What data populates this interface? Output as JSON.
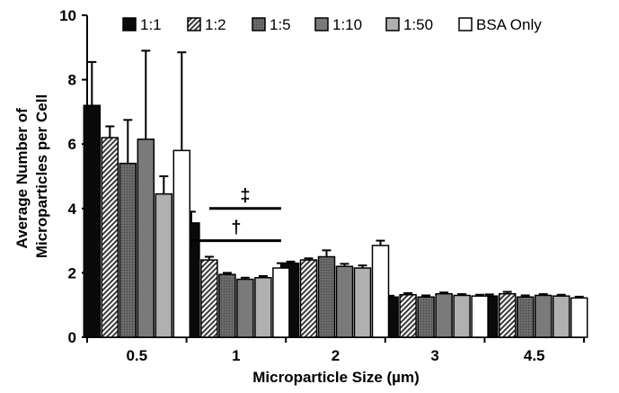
{
  "chart_data": {
    "type": "bar",
    "title": "",
    "xlabel": "Microparticle Size (µm)",
    "ylabel": "Average Number of Microparticles per Cell",
    "ylabel_lines": [
      "Average Number of",
      "Microparticles per Cell"
    ],
    "ylim": [
      0,
      10
    ],
    "yticks": [
      0,
      2,
      4,
      6,
      8,
      10
    ],
    "categories": [
      "0.5",
      "1",
      "2",
      "3",
      "4.5"
    ],
    "grid": false,
    "legend_position": "top",
    "series": [
      {
        "name": "1:1",
        "values": [
          7.2,
          3.55,
          2.3,
          1.25,
          1.28
        ],
        "errors": [
          1.35,
          0.35,
          0.05,
          0.04,
          0.05
        ]
      },
      {
        "name": "1:2",
        "values": [
          6.2,
          2.4,
          2.4,
          1.32,
          1.35
        ],
        "errors": [
          0.35,
          0.1,
          0.05,
          0.05,
          0.06
        ]
      },
      {
        "name": "1:5",
        "values": [
          5.4,
          1.95,
          2.5,
          1.25,
          1.25
        ],
        "errors": [
          1.35,
          0.05,
          0.2,
          0.05,
          0.05
        ]
      },
      {
        "name": "1:10",
        "values": [
          6.15,
          1.8,
          2.2,
          1.35,
          1.3
        ],
        "errors": [
          2.75,
          0.05,
          0.08,
          0.04,
          0.04
        ]
      },
      {
        "name": "1:50",
        "values": [
          4.45,
          1.85,
          2.15,
          1.3,
          1.28
        ],
        "errors": [
          0.55,
          0.05,
          0.08,
          0.04,
          0.04
        ]
      },
      {
        "name": "BSA Only",
        "values": [
          5.8,
          2.15,
          2.85,
          1.28,
          1.22
        ],
        "errors": [
          3.05,
          0.15,
          0.15,
          0.04,
          0.04
        ]
      }
    ],
    "series_colors": [
      "#0a0a0a",
      "#9a9a9a",
      "#555555",
      "#7a7a7a",
      "#b0b0b0",
      "#ffffff"
    ],
    "annotations": [
      {
        "text": "‡",
        "category": "1",
        "from_series": 1,
        "to_series": 5,
        "y": 4.0
      },
      {
        "text": "†",
        "category": "1",
        "from_series": 0,
        "to_series": 5,
        "y": 3.0
      }
    ]
  }
}
